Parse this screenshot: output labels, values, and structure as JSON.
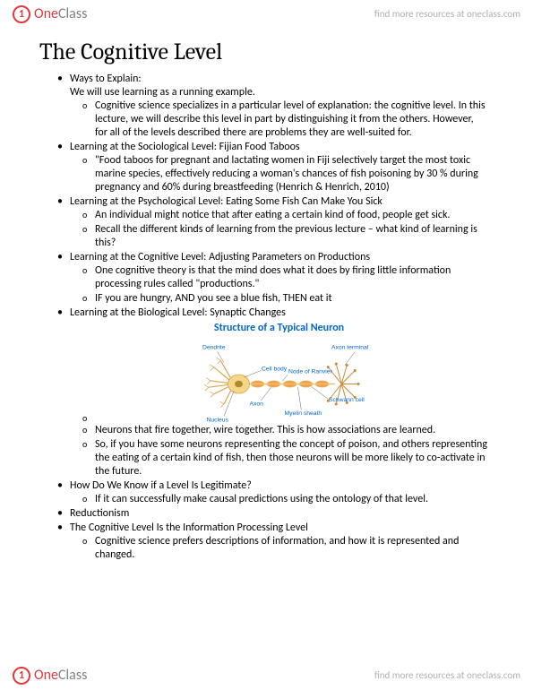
{
  "brand": {
    "one": "One",
    "class": "Class",
    "tagline": "find more resources at oneclass.com"
  },
  "title": "The Cognitive Level",
  "b1": {
    "h": "Ways to Explain:",
    "p": "We will use learning as a running example.",
    "s1": "Cognitive science specializes in a particular level of explanation: the cognitive level. In this lecture, we will describe this level in part by distinguishing it from the others. However, for all of the levels described there are problems they are well-suited for."
  },
  "b2": {
    "h": "Learning at the Sociological Level: Fijian Food Taboos",
    "s1": "\"Food taboos for pregnant and lactating women in Fiji selectively target the most toxic marine species, effectively reducing a woman's chances of fish poisoning by 30 % during pregnancy and 60% during breastfeeding  (Henrich & Henrich, 2010)"
  },
  "b3": {
    "h": "Learning at the Psychological Level: Eating Some Fish Can Make You Sick",
    "s1": "An individual might notice that after eating a certain kind of food, people get sick.",
    "s2": "Recall the different kinds of learning from the previous lecture – what kind of learning is this?"
  },
  "b4": {
    "h": "Learning at the Cognitive Level: Adjusting Parameters on Productions",
    "s1": "One cognitive theory is that the mind does what it does by firing little information processing rules called \"productions.\"",
    "s2": "IF you are hungry, AND you see a blue fish, THEN eat it"
  },
  "b5": {
    "h": "Learning at the Biological Level: Synaptic Changes",
    "s1": "Neurons that fire together, wire together. This is how associations are learned.",
    "s2": "So, if you have some neurons representing the concept of poison, and others representing the eating of a certain kind of fish, then those neurons will be more likely to co-activate in the future."
  },
  "b6": {
    "h": "How Do We Know if a Level Is Legitimate?",
    "s1": "If it can successfully make causal predictions using the ontology of that level."
  },
  "b7": {
    "h": "Reductionism"
  },
  "b8": {
    "h": "The Cognitive Level Is the Information Processing Level",
    "s1": "Cognitive science prefers descriptions of information, and how it is represented and changed."
  },
  "neuron": {
    "title": "Structure of a Typical Neuron",
    "labels": {
      "dendrite": "Dendrite",
      "axon_terminal": "Axon terminal",
      "cell_body": "Cell body",
      "ranvier": "Node of Ranvier",
      "axon": "Axon",
      "schwann": "Schwann cell",
      "myelin": "Myelin sheath",
      "nucleus": "Nucleus"
    },
    "colors": {
      "label": "#0066cc",
      "dendrite": "#d4a04a",
      "soma": "#f5d78a",
      "nucleus": "#b08830",
      "axon": "#e8c46a",
      "myelin": "#f0a050",
      "terminal": "#c88830",
      "line": "#555555"
    }
  }
}
